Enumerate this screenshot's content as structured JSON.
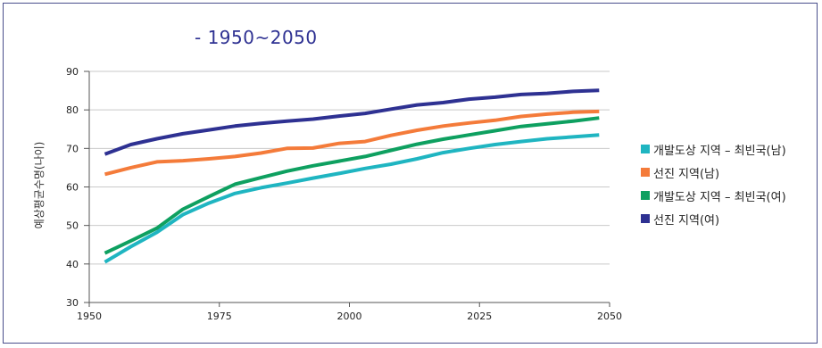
{
  "chart_data": {
    "type": "line",
    "subtitle": "- 1950~2050",
    "ylabel": "예상평균수명(나이)",
    "xlabel": "",
    "xlim": [
      1950,
      2050
    ],
    "ylim": [
      30,
      90
    ],
    "xticks": [
      1950,
      1975,
      2000,
      2025,
      2050
    ],
    "yticks": [
      30,
      40,
      50,
      60,
      70,
      80,
      90
    ],
    "grid": "horizontal",
    "legend_position": "right",
    "x": [
      1953,
      1958,
      1963,
      1968,
      1973,
      1978,
      1983,
      1988,
      1993,
      1998,
      2003,
      2008,
      2013,
      2018,
      2023,
      2028,
      2033,
      2038,
      2043,
      2048
    ],
    "series": [
      {
        "name": "개발도상 지역 – 최빈국(남)",
        "color": "#1fb5c1",
        "values": [
          40.5,
          44.5,
          48.2,
          52.8,
          55.8,
          58.3,
          59.8,
          61.0,
          62.3,
          63.5,
          64.8,
          65.9,
          67.3,
          68.9,
          70.0,
          71.0,
          71.8,
          72.5,
          73.0,
          73.5
        ]
      },
      {
        "name": "선진 지역(남)",
        "color": "#f47b3a",
        "values": [
          63.3,
          65.0,
          66.5,
          66.8,
          67.3,
          67.9,
          68.8,
          70.0,
          70.1,
          71.3,
          71.8,
          73.4,
          74.7,
          75.8,
          76.6,
          77.3,
          78.3,
          78.9,
          79.4,
          79.6
        ]
      },
      {
        "name": "개발도상 지역 – 최빈국(여)",
        "color": "#0ea060",
        "values": [
          42.8,
          46.0,
          49.3,
          54.2,
          57.5,
          60.7,
          62.4,
          64.1,
          65.5,
          66.7,
          67.9,
          69.5,
          71.1,
          72.4,
          73.5,
          74.6,
          75.7,
          76.4,
          77.1,
          77.9
        ]
      },
      {
        "name": "선진 지역(여)",
        "color": "#2e3192",
        "values": [
          68.5,
          71.0,
          72.5,
          73.8,
          74.8,
          75.8,
          76.5,
          77.1,
          77.6,
          78.4,
          79.1,
          80.2,
          81.3,
          81.9,
          82.8,
          83.3,
          84.0,
          84.3,
          84.8,
          85.1
        ]
      }
    ]
  }
}
